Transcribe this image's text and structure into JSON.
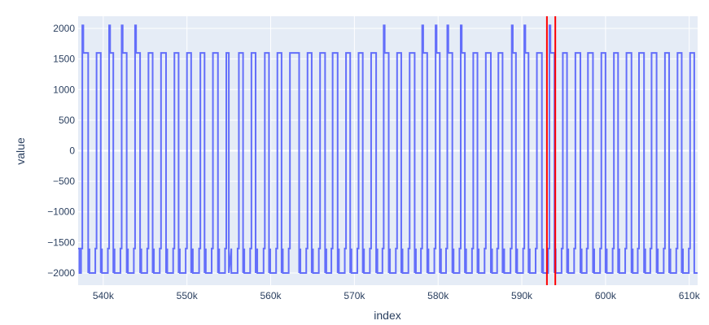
{
  "chart_data": {
    "type": "line",
    "xlabel": "index",
    "ylabel": "value",
    "xlim": [
      537000,
      611000
    ],
    "ylim": [
      -2200,
      2200
    ],
    "x_ticks": [
      540000,
      550000,
      560000,
      570000,
      580000,
      590000,
      600000,
      610000
    ],
    "x_tick_labels": [
      "540k",
      "550k",
      "560k",
      "570k",
      "580k",
      "590k",
      "600k",
      "610k"
    ],
    "y_ticks": [
      -2000,
      -1500,
      -1000,
      -500,
      0,
      500,
      1000,
      1500,
      2000
    ],
    "y_tick_labels": [
      "−2000",
      "−1500",
      "−1000",
      "−500",
      "0",
      "500",
      "1000",
      "1500",
      "2000"
    ],
    "grid": true,
    "colors": {
      "plot_bg": "#e5ecf6",
      "grid": "#ffffff",
      "series": "#636efa",
      "markers": "#ff0000"
    },
    "vertical_lines": [
      593000,
      594000
    ],
    "series": [
      {
        "pulses": [
          {
            "start": 537500,
            "end": 538200,
            "spike": 537700
          },
          {
            "start": 539200,
            "end": 539700
          },
          {
            "start": 540700,
            "end": 541200,
            "spike": 540800
          },
          {
            "start": 542200,
            "end": 542800,
            "spike": 542400
          },
          {
            "start": 543800,
            "end": 544400,
            "spike": 544000
          },
          {
            "start": 545400,
            "end": 545900
          },
          {
            "start": 546900,
            "end": 547500
          },
          {
            "start": 548500,
            "end": 549000
          },
          {
            "start": 550000,
            "end": 550500
          },
          {
            "start": 551600,
            "end": 552100
          },
          {
            "start": 553100,
            "end": 553700
          },
          {
            "start": 554700,
            "end": 555000
          },
          {
            "start": 556200,
            "end": 556700
          },
          {
            "start": 557700,
            "end": 558200
          },
          {
            "start": 559300,
            "end": 559800
          },
          {
            "start": 560800,
            "end": 561300
          },
          {
            "start": 562300,
            "end": 563400
          },
          {
            "start": 564400,
            "end": 564900
          },
          {
            "start": 565900,
            "end": 566500
          },
          {
            "start": 567400,
            "end": 568000
          },
          {
            "start": 569000,
            "end": 569500
          },
          {
            "start": 570500,
            "end": 571000
          },
          {
            "start": 572000,
            "end": 572600
          },
          {
            "start": 573500,
            "end": 574100,
            "spike": 573200
          },
          {
            "start": 575100,
            "end": 575600
          },
          {
            "start": 576600,
            "end": 577200
          },
          {
            "start": 578100,
            "end": 578700,
            "spike": 577900
          },
          {
            "start": 579700,
            "end": 580200,
            "spike": 579200
          },
          {
            "start": 581100,
            "end": 581700,
            "spike": 581000
          },
          {
            "start": 582700,
            "end": 583200,
            "spike": 582700
          },
          {
            "start": 584200,
            "end": 584700
          },
          {
            "start": 585700,
            "end": 586300
          },
          {
            "start": 587200,
            "end": 587700
          },
          {
            "start": 588800,
            "end": 589300,
            "spike": 588800
          },
          {
            "start": 590300,
            "end": 590800,
            "spike": 590300
          },
          {
            "start": 591800,
            "end": 592400
          },
          {
            "start": 593300,
            "end": 593900,
            "spike": 593500
          },
          {
            "start": 594900,
            "end": 595400
          },
          {
            "start": 596400,
            "end": 597000
          },
          {
            "start": 597900,
            "end": 598500
          },
          {
            "start": 599500,
            "end": 600000
          },
          {
            "start": 601000,
            "end": 601500
          },
          {
            "start": 602500,
            "end": 603100
          },
          {
            "start": 604000,
            "end": 604600
          },
          {
            "start": 605500,
            "end": 606100
          },
          {
            "start": 607100,
            "end": 607600
          },
          {
            "start": 608600,
            "end": 609100
          },
          {
            "start": 610100,
            "end": 610600
          }
        ],
        "levels": {
          "high": 1600,
          "low": -2000,
          "shoulder": -1600,
          "spike": 2050
        }
      }
    ]
  }
}
